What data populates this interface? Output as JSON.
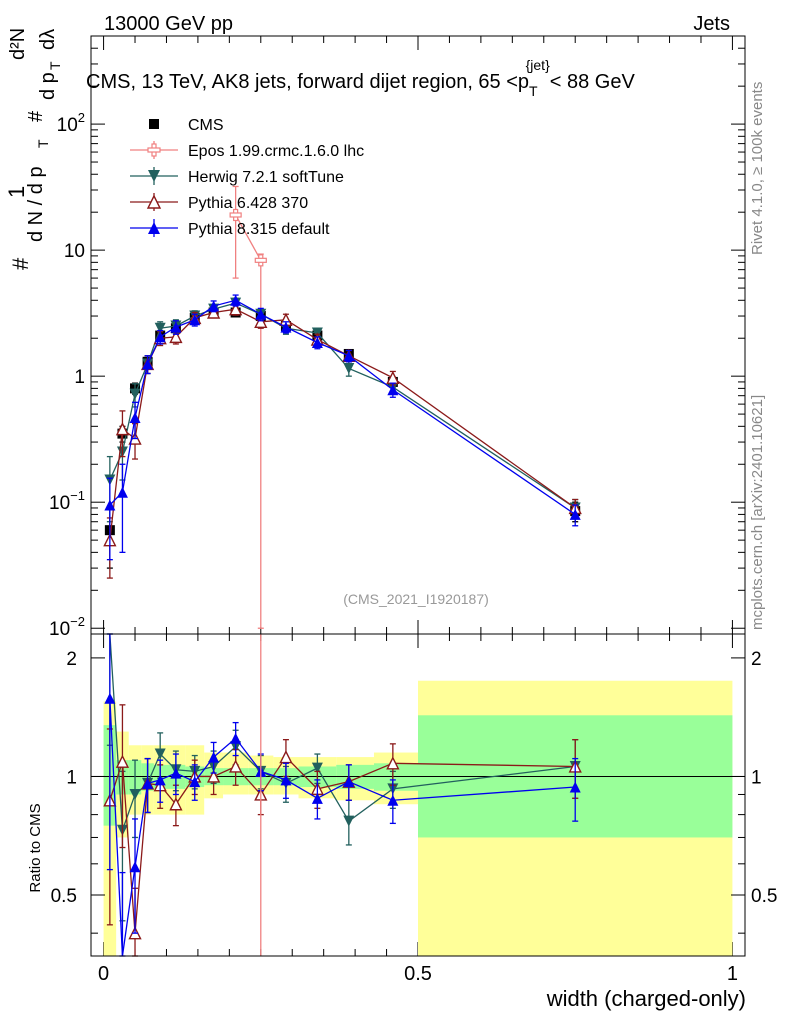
{
  "header": {
    "left": "13000 GeV pp",
    "right": "Jets"
  },
  "side_labels": {
    "rivet": "Rivet 4.1.0, ≥ 100k events",
    "mcplots": "mcplots.cern.ch [arXiv:2401.10621]"
  },
  "watermark": "(CMS_2021_I1920187)",
  "chart_data": {
    "type": "scatter",
    "title": "CMS, 13 TeV, AK8 jets, forward dijet region, 65 < p_T^{jet} < 88 GeV",
    "title_parts": {
      "main": "CMS, 13 TeV, AK8 jets, forward dijet region, 65 <p",
      "sub": "T",
      "sup": "{jet}",
      "tail": "< 88 GeV"
    },
    "xlabel": "width (charged-only)",
    "ylabel": "1/dN/dp_T  d²N/dp_T dλ",
    "ylabel_parts": {
      "num": "1",
      "hash": "#",
      "den": "d N / d p",
      "sub": "T",
      "d2n": "d²N",
      "dp": "d p",
      "dlam": "dλ"
    },
    "xlim": [
      -0.02,
      1.02
    ],
    "ylim": [
      0.009,
      500
    ],
    "yscale": "log",
    "x_ticks": [
      0,
      0.5,
      1
    ],
    "x_tick_labels": [
      "0",
      "0.5",
      "1"
    ],
    "y_tick_labels": [
      {
        "v": 0.01,
        "base": "10",
        "exp": "−2"
      },
      {
        "v": 0.1,
        "base": "10",
        "exp": "−1"
      },
      {
        "v": 1,
        "base": "1",
        "exp": ""
      },
      {
        "v": 10,
        "base": "10",
        "exp": ""
      },
      {
        "v": 100,
        "base": "10",
        "exp": "2"
      }
    ],
    "bin_edges": [
      0,
      0.02,
      0.04,
      0.06,
      0.08,
      0.1,
      0.13,
      0.16,
      0.19,
      0.23,
      0.27,
      0.31,
      0.37,
      0.43,
      0.5,
      1.0
    ],
    "series": [
      {
        "name": "CMS",
        "color": "#000000",
        "marker": "square",
        "x": [
          0.01,
          0.03,
          0.05,
          0.07,
          0.09,
          0.115,
          0.145,
          0.175,
          0.21,
          0.25,
          0.29,
          0.34,
          0.39,
          0.46,
          0.75
        ],
        "y": [
          0.06,
          0.35,
          0.8,
          1.3,
          2.1,
          2.4,
          2.9,
          3.2,
          3.2,
          3.0,
          2.5,
          2.1,
          1.5,
          0.9,
          0.085
        ],
        "err": [
          0.03,
          0.05,
          0.08,
          0.1,
          0.15,
          0.15,
          0.15,
          0.15,
          0.15,
          0.15,
          0.12,
          0.1,
          0.1,
          0.08,
          0.015
        ]
      },
      {
        "name": "Epos 1.99.crmc.1.6.0 lhc",
        "color": "#f08080",
        "marker": "cross",
        "x": [
          0.21,
          0.25
        ],
        "y": [
          19,
          8.3
        ],
        "err_lo": [
          13,
          8.29
        ],
        "err_hi": [
          13,
          1
        ]
      },
      {
        "name": "Herwig 7.2.1 softTune",
        "color": "#22605e",
        "marker": "triangle-down",
        "x": [
          0.01,
          0.03,
          0.05,
          0.07,
          0.09,
          0.115,
          0.145,
          0.175,
          0.21,
          0.25,
          0.29,
          0.34,
          0.39,
          0.46,
          0.75
        ],
        "y": [
          0.15,
          0.25,
          0.72,
          1.25,
          2.4,
          2.5,
          3.0,
          3.4,
          3.8,
          3.1,
          2.4,
          2.2,
          1.15,
          0.82,
          0.09
        ],
        "err": [
          0.08,
          0.1,
          0.15,
          0.2,
          0.3,
          0.3,
          0.3,
          0.3,
          0.35,
          0.3,
          0.25,
          0.2,
          0.15,
          0.1,
          0.015
        ]
      },
      {
        "name": "Pythia 6.428 370",
        "color": "#8b1a1a",
        "marker": "triangle-up-open",
        "x": [
          0.01,
          0.03,
          0.05,
          0.07,
          0.09,
          0.115,
          0.145,
          0.175,
          0.21,
          0.25,
          0.29,
          0.34,
          0.39,
          0.46,
          0.75
        ],
        "y": [
          0.05,
          0.38,
          0.32,
          1.25,
          2.0,
          2.05,
          2.9,
          3.2,
          3.4,
          2.7,
          2.8,
          1.95,
          1.45,
          0.97,
          0.09
        ],
        "err": [
          0.025,
          0.15,
          0.1,
          0.2,
          0.25,
          0.25,
          0.3,
          0.3,
          0.35,
          0.3,
          0.3,
          0.2,
          0.15,
          0.12,
          0.015
        ]
      },
      {
        "name": "Pythia 8.315 default",
        "color": "#0000ee",
        "marker": "triangle-up",
        "x": [
          0.01,
          0.03,
          0.05,
          0.07,
          0.09,
          0.115,
          0.145,
          0.175,
          0.21,
          0.25,
          0.29,
          0.34,
          0.39,
          0.46,
          0.75
        ],
        "y": [
          0.095,
          0.12,
          0.47,
          1.25,
          2.05,
          2.45,
          2.8,
          3.6,
          4.0,
          3.1,
          2.45,
          1.85,
          1.45,
          0.78,
          0.08
        ],
        "err": [
          0.06,
          0.08,
          0.15,
          0.2,
          0.25,
          0.3,
          0.3,
          0.35,
          0.4,
          0.35,
          0.25,
          0.2,
          0.15,
          0.1,
          0.015
        ]
      }
    ],
    "ratio": {
      "ylabel": "Ratio to CMS",
      "ylim": [
        0.35,
        2.3
      ],
      "y_ticks": [
        0.5,
        1,
        2
      ],
      "y_tick_labels": [
        "0.5",
        "1",
        "2"
      ],
      "band_inner": [
        [
          0.75,
          1.35
        ],
        [
          0.9,
          1.1
        ],
        [
          0.9,
          1.1
        ],
        [
          0.92,
          1.08
        ],
        [
          0.93,
          1.07
        ],
        [
          0.93,
          1.07
        ],
        [
          0.94,
          1.06
        ],
        [
          0.95,
          1.05
        ],
        [
          0.95,
          1.05
        ],
        [
          0.95,
          1.05
        ],
        [
          0.95,
          1.05
        ],
        [
          0.94,
          1.06
        ],
        [
          0.93,
          1.07
        ],
        [
          0.92,
          1.08
        ],
        [
          0.7,
          1.43
        ]
      ],
      "band_outer": [
        [
          0.35,
          1.55
        ],
        [
          0.7,
          1.3
        ],
        [
          0.8,
          1.2
        ],
        [
          0.8,
          1.2
        ],
        [
          0.8,
          1.2
        ],
        [
          0.8,
          1.2
        ],
        [
          0.8,
          1.2
        ],
        [
          0.88,
          1.15
        ],
        [
          0.9,
          1.15
        ],
        [
          0.9,
          1.13
        ],
        [
          0.9,
          1.12
        ],
        [
          0.88,
          1.12
        ],
        [
          0.87,
          1.12
        ],
        [
          0.85,
          1.15
        ],
        [
          0.35,
          1.75
        ]
      ],
      "series": [
        {
          "name": "Herwig 7.2.1 softTune",
          "color": "#22605e",
          "marker": "triangle-down",
          "y": [
            2.4,
            0.73,
            0.9,
            0.96,
            1.14,
            1.04,
            1.03,
            1.06,
            1.19,
            1.03,
            0.96,
            1.05,
            0.77,
            0.93,
            1.06
          ],
          "err": [
            1.2,
            0.3,
            0.2,
            0.15,
            0.15,
            0.12,
            0.1,
            0.1,
            0.12,
            0.1,
            0.1,
            0.09,
            0.1,
            0.1,
            0.18
          ]
        },
        {
          "name": "Pythia 6.428 370",
          "color": "#8b1a1a",
          "marker": "triangle-up-open",
          "y": [
            0.87,
            1.09,
            0.4,
            0.96,
            0.95,
            0.85,
            1.0,
            1.0,
            1.06,
            0.9,
            1.12,
            0.93,
            0.97,
            1.08,
            1.06
          ],
          "err": [
            0.45,
            0.43,
            0.12,
            0.15,
            0.12,
            0.1,
            0.1,
            0.1,
            0.11,
            0.1,
            0.12,
            0.1,
            0.1,
            0.13,
            0.18
          ]
        },
        {
          "name": "Pythia 8.315 default",
          "color": "#0000ee",
          "marker": "triangle-up",
          "y": [
            1.58,
            0.34,
            0.59,
            0.96,
            0.98,
            1.02,
            0.97,
            1.12,
            1.25,
            1.03,
            0.98,
            0.88,
            0.97,
            0.87,
            0.94
          ],
          "err": [
            1.0,
            0.23,
            0.19,
            0.15,
            0.12,
            0.12,
            0.1,
            0.1,
            0.12,
            0.11,
            0.1,
            0.1,
            0.1,
            0.11,
            0.17
          ]
        }
      ]
    }
  }
}
